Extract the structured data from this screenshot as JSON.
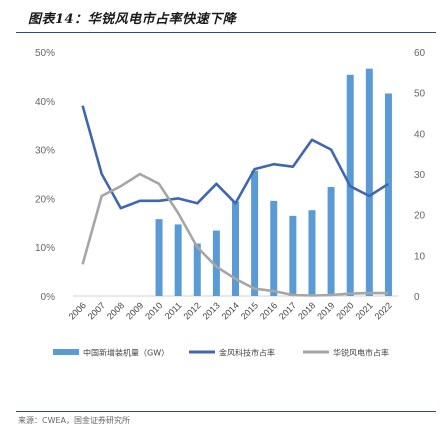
{
  "page": {
    "title": "图表14：华锐风电市占率快速下降",
    "source": "来源：CWEA，国金证券研究所"
  },
  "chart_data": {
    "type": "bar+line",
    "categories": [
      "2006",
      "2007",
      "2008",
      "2009",
      "2010",
      "2011",
      "2012",
      "2013",
      "2014",
      "2015",
      "2016",
      "2017",
      "2018",
      "2019",
      "2020",
      "2021",
      "2022"
    ],
    "y_left": {
      "ticks": [
        "0%",
        "10%",
        "20%",
        "30%",
        "40%",
        "50%"
      ],
      "range": [
        0,
        50
      ]
    },
    "y_right": {
      "ticks": [
        "0",
        "10",
        "20",
        "30",
        "40",
        "50",
        "60"
      ],
      "range": [
        0,
        60
      ]
    },
    "bars": {
      "name": "中国新增装机量（GW）",
      "axis": "right",
      "color": "#5b9bd5",
      "values": [
        null,
        null,
        null,
        null,
        18.9,
        17.6,
        12.9,
        16.1,
        23.2,
        30.8,
        23.4,
        19.7,
        21.1,
        26.8,
        54.4,
        55.9,
        49.8
      ]
    },
    "series": [
      {
        "name": "金风科技市占率",
        "axis": "left",
        "color": "#3f67b1",
        "values": [
          39,
          25,
          18,
          19.5,
          19.5,
          20,
          19,
          23,
          19,
          26,
          27,
          26.5,
          32,
          30,
          22.5,
          20.5,
          23
        ]
      },
      {
        "name": "华锐风电市占率",
        "axis": "left",
        "color": "#a6a6a6",
        "values": [
          6.5,
          20.5,
          22.5,
          25,
          23,
          17,
          10,
          6,
          3.5,
          1.5,
          1,
          0.2,
          0.1,
          0.2,
          0.5,
          0.6,
          0.6
        ]
      }
    ]
  }
}
